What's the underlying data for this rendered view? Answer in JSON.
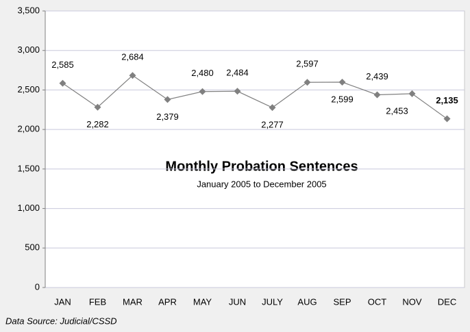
{
  "chart_data": {
    "type": "line",
    "title": "Monthly Probation Sentences",
    "subtitle": "January 2005 to December 2005",
    "source": "Data Source: Judicial/CSSD",
    "categories": [
      "JAN",
      "FEB",
      "MAR",
      "APR",
      "MAY",
      "JUN",
      "JULY",
      "AUG",
      "SEP",
      "OCT",
      "NOV",
      "DEC"
    ],
    "series": [
      {
        "name": "Probation Sentences",
        "color": "#808080",
        "values": [
          2585,
          2282,
          2684,
          2379,
          2480,
          2484,
          2277,
          2597,
          2599,
          2439,
          2453,
          2135
        ],
        "value_labels": [
          "2,585",
          "2,282",
          "2,684",
          "2,379",
          "2,480",
          "2,484",
          "2,277",
          "2,597",
          "2,599",
          "2,439",
          "2,453",
          "2,135"
        ]
      }
    ],
    "ylim": [
      0,
      3500
    ],
    "yticks": [
      0,
      {
        "value": 500,
        "label": "500"
      },
      {
        "value": 1000,
        "label": "1,000"
      },
      {
        "value": 1500,
        "label": "1,500"
      },
      {
        "value": 2000,
        "label": "2,000"
      },
      {
        "value": 2500,
        "label": "2,500"
      },
      {
        "value": 3000,
        "label": "3,000"
      },
      {
        "value": 3500,
        "label": "3,500"
      }
    ],
    "grid": true
  }
}
